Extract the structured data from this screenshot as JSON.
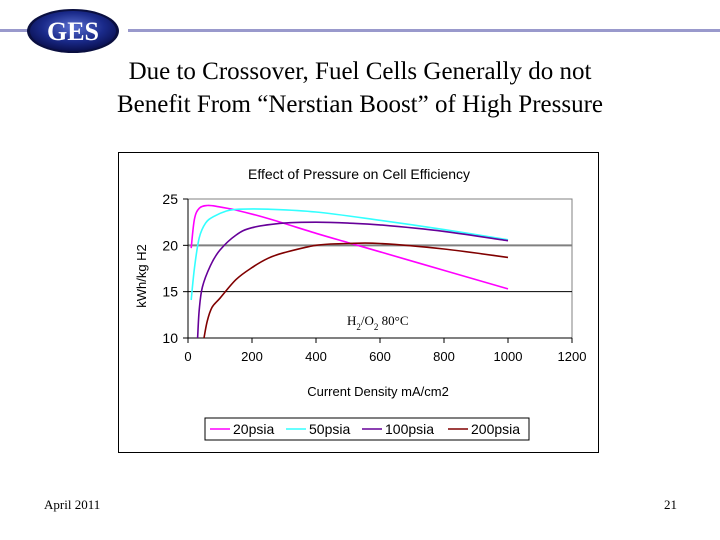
{
  "header": {
    "logo_text": "GES",
    "title_line1": "Due to Crossover, Fuel Cells Generally do not",
    "title_line2": "Benefit From “Nerstian Boost” of High Pressure"
  },
  "footer": {
    "date": "April 2011",
    "page_number": "21"
  },
  "chart_data": {
    "type": "line",
    "title": "Effect of Pressure on Cell Efficiency",
    "xlabel": "Current Density  mA/cm2",
    "ylabel": "kWh/kg H2",
    "xlim": [
      0,
      1200
    ],
    "ylim": [
      10,
      25
    ],
    "x_ticks": [
      "0",
      "200",
      "400",
      "600",
      "800",
      "1000",
      "1200"
    ],
    "y_ticks": [
      "25",
      "20",
      "15",
      "10"
    ],
    "grid": "horizontal",
    "legend_position": "bottom",
    "annotation": {
      "base": "H",
      "sub1": "2",
      "mid": "/O",
      "sub2": "2",
      "tail": " 80°C"
    },
    "series": [
      {
        "name": "20psia",
        "color": "#ff00ff",
        "points": [
          [
            10,
            19.7
          ],
          [
            20,
            22.8
          ],
          [
            35,
            24.0
          ],
          [
            60,
            24.3
          ],
          [
            90,
            24.2
          ],
          [
            150,
            23.8
          ],
          [
            250,
            22.9
          ],
          [
            400,
            21.3
          ],
          [
            500,
            20.3
          ],
          [
            600,
            19.3
          ],
          [
            800,
            17.3
          ],
          [
            1000,
            15.3
          ]
        ]
      },
      {
        "name": "50psia",
        "color": "#33ffff",
        "points": [
          [
            10,
            14.1
          ],
          [
            20,
            17.5
          ],
          [
            35,
            20.8
          ],
          [
            55,
            22.4
          ],
          [
            80,
            23.1
          ],
          [
            120,
            23.7
          ],
          [
            160,
            23.9
          ],
          [
            250,
            23.9
          ],
          [
            400,
            23.6
          ],
          [
            600,
            22.7
          ],
          [
            800,
            21.7
          ],
          [
            1000,
            20.6
          ]
        ]
      },
      {
        "name": "100psia",
        "color": "#660099",
        "points": [
          [
            30,
            10
          ],
          [
            35,
            13
          ],
          [
            45,
            15.5
          ],
          [
            70,
            17.8
          ],
          [
            100,
            19.5
          ],
          [
            150,
            21.1
          ],
          [
            200,
            21.9
          ],
          [
            300,
            22.4
          ],
          [
            400,
            22.5
          ],
          [
            500,
            22.4
          ],
          [
            600,
            22.2
          ],
          [
            800,
            21.5
          ],
          [
            1000,
            20.5
          ]
        ]
      },
      {
        "name": "200psia",
        "color": "#800000",
        "points": [
          [
            50,
            10
          ],
          [
            60,
            11.8
          ],
          [
            75,
            13.3
          ],
          [
            100,
            14.3
          ],
          [
            150,
            16.3
          ],
          [
            200,
            17.6
          ],
          [
            250,
            18.6
          ],
          [
            300,
            19.2
          ],
          [
            400,
            20.0
          ],
          [
            500,
            20.2
          ],
          [
            600,
            20.2
          ],
          [
            800,
            19.6
          ],
          [
            1000,
            18.7
          ]
        ]
      }
    ]
  }
}
